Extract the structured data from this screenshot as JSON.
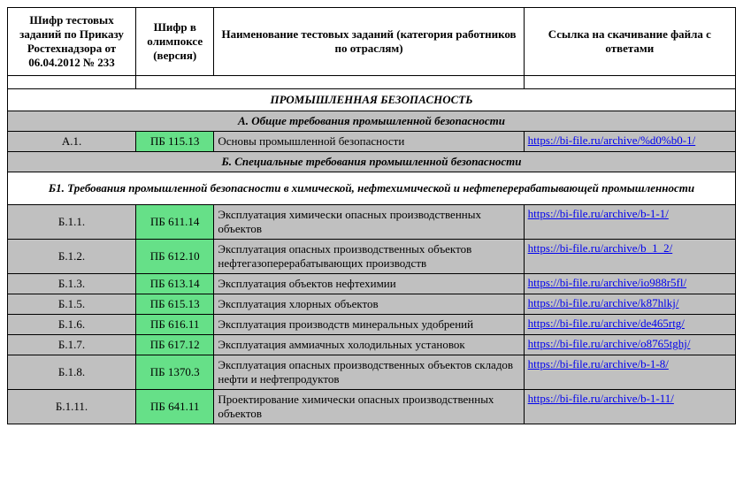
{
  "headers": {
    "col1": "Шифр тестовых заданий по Приказу Ростехнадзора от 06.04.2012 № 233",
    "col2": "Шифр в олимпоксе (версия)",
    "col3": "Наименование тестовых заданий (категория работников по отраслям)",
    "col4": "Ссылка на скачивание файла с ответами"
  },
  "section_main": "ПРОМЫШЛЕННАЯ БЕЗОПАСНОСТЬ",
  "section_a": "А. Общие требования промышленной безопасности",
  "row_a1": {
    "code": "А.1.",
    "ver": "ПБ 115.13",
    "name": "Основы промышленной безопасности",
    "link": "https://bi-file.ru/archive/%d0%b0-1/"
  },
  "section_b": "Б.  Специальные требования промышленной безопасности",
  "section_b1": "Б1. Требования промышленной безопасности в химической, нефтехимической и нефтеперерабатывающей промышленности",
  "rows": [
    {
      "code": "Б.1.1.",
      "ver": "ПБ 611.14",
      "name": "Эксплуатация химически опасных производственных объектов",
      "link": "https://bi-file.ru/archive/b-1-1/"
    },
    {
      "code": "Б.1.2.",
      "ver": "ПБ 612.10",
      "name": "Эксплуатация опасных производственных объектов нефтегазоперерабатывающих производств",
      "link": "https://bi-file.ru/archive/b_1_2/"
    },
    {
      "code": "Б.1.3.",
      "ver": "ПБ 613.14",
      "name": "Эксплуатация объектов нефтехимии",
      "link": "https://bi-file.ru/archive/io988r5fl/"
    },
    {
      "code": "Б.1.5.",
      "ver": "ПБ 615.13",
      "name": "Эксплуатация хлорных объектов",
      "link": "https://bi-file.ru/archive/k87hlkj/"
    },
    {
      "code": "Б.1.6.",
      "ver": "ПБ 616.11",
      "name": "Эксплуатация производств минеральных удобрений",
      "link": "https://bi-file.ru/archive/de465rtg/"
    },
    {
      "code": "Б.1.7.",
      "ver": "ПБ 617.12",
      "name": "Эксплуатация аммиачных холодильных установок",
      "link": "https://bi-file.ru/archive/o8765tghj/"
    },
    {
      "code": "Б.1.8.",
      "ver": "ПБ 1370.3",
      "name": "Эксплуатация опасных производственных объектов складов нефти и нефтепродуктов",
      "link": "https://bi-file.ru/archive/b-1-8/"
    },
    {
      "code": "Б.1.11.",
      "ver": "ПБ 641.11",
      "name": "Проектирование химически опасных производственных объектов",
      "link": "https://bi-file.ru/archive/b-1-11/"
    }
  ]
}
